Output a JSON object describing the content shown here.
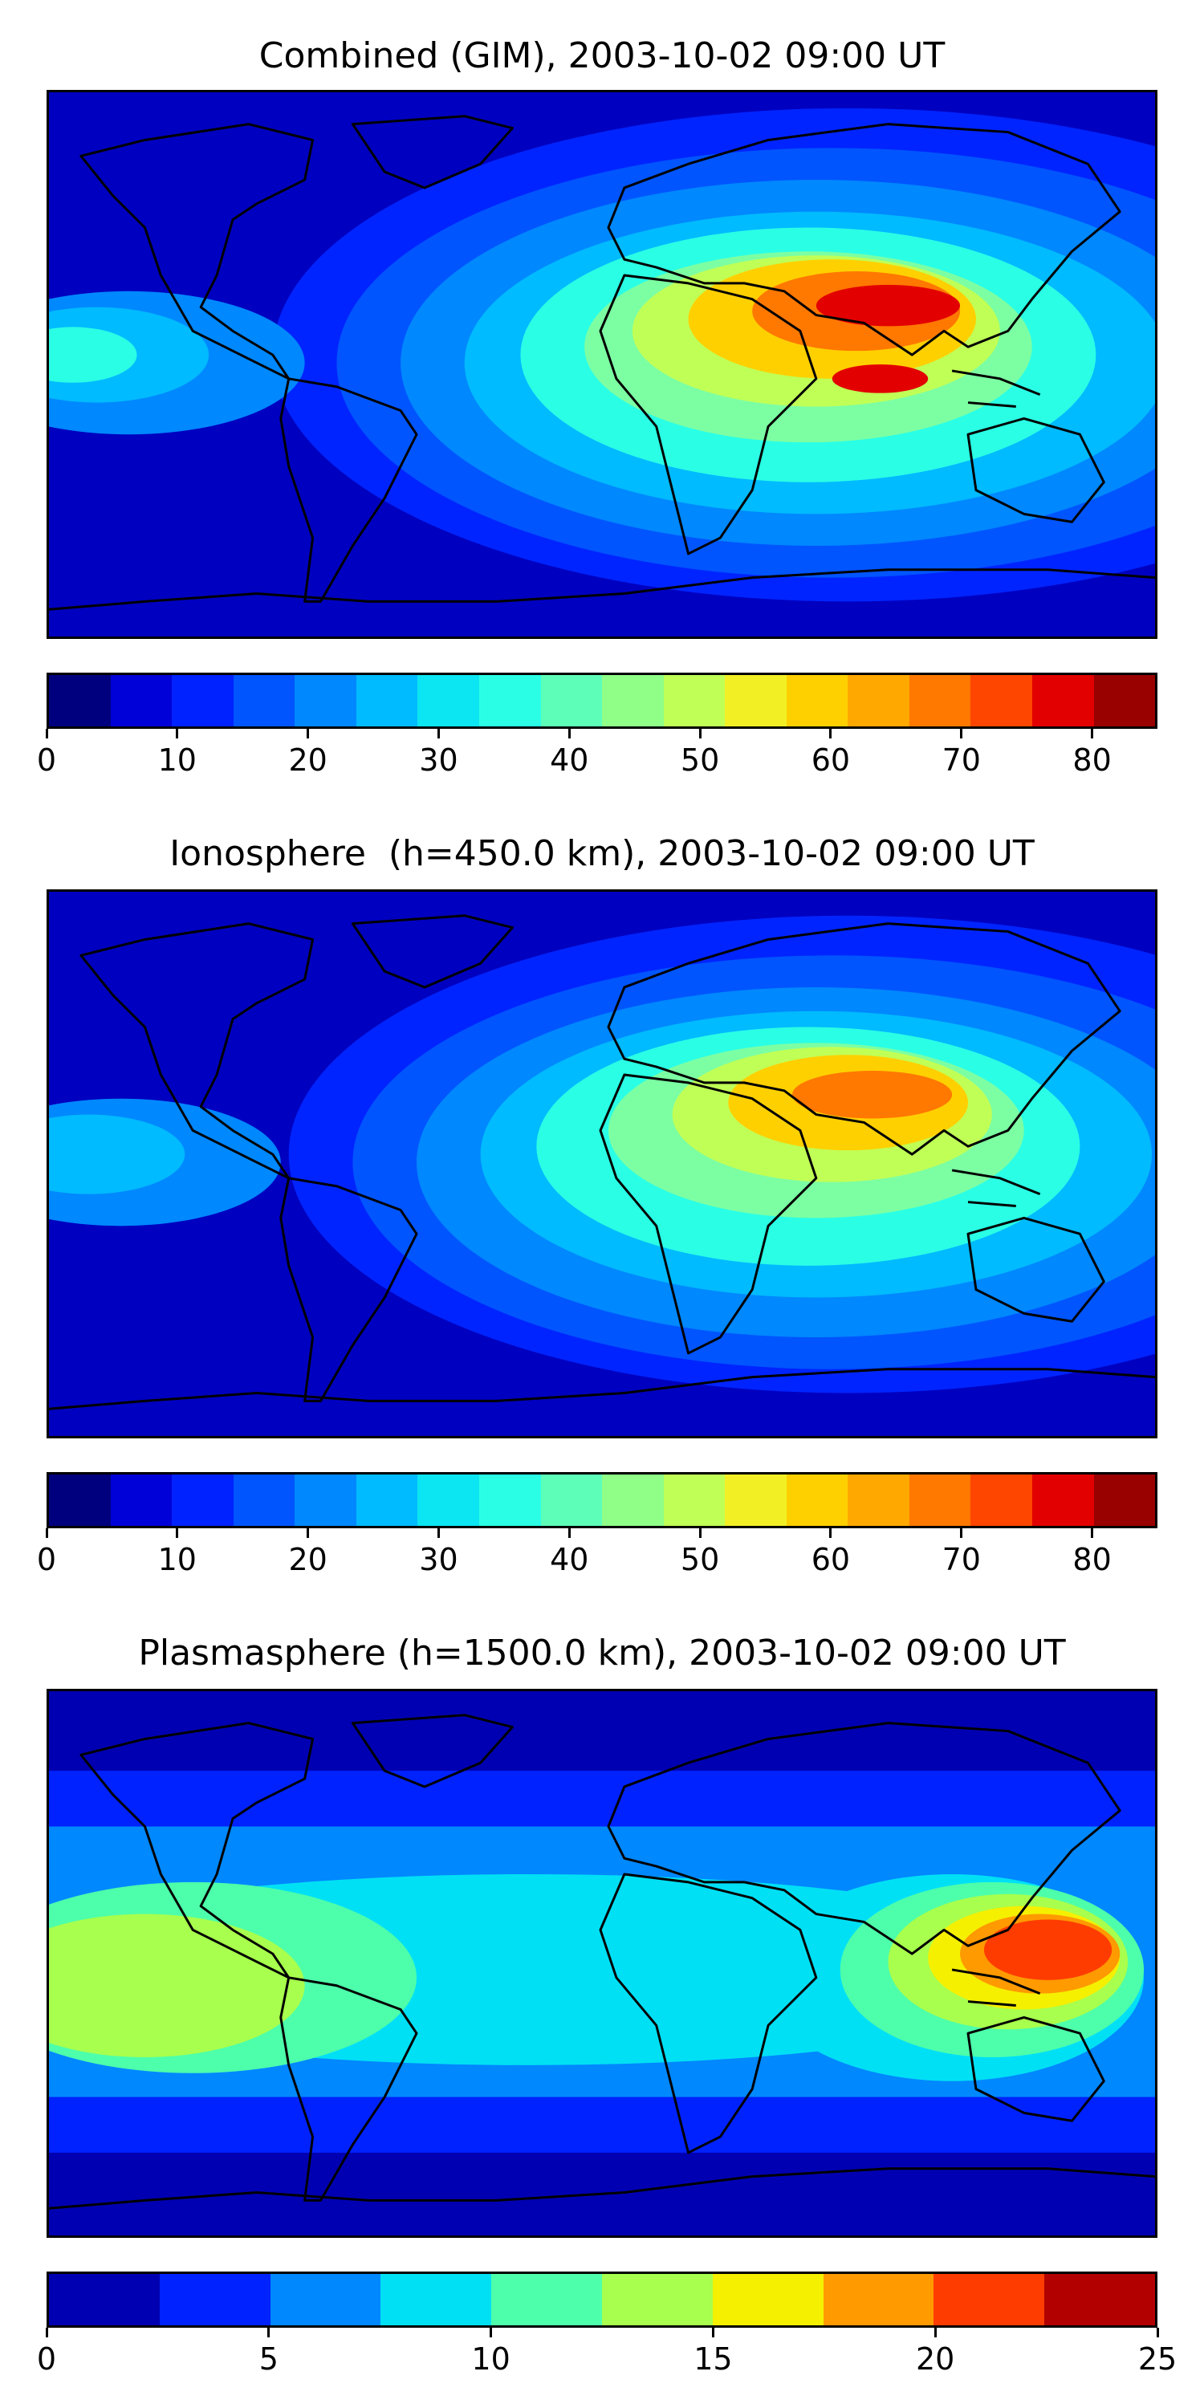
{
  "panels": [
    {
      "title": "Combined (GIM), 2003-10-02 09:00 UT",
      "colorbar": {
        "ticks": [
          "0",
          "10",
          "20",
          "30",
          "40",
          "50",
          "60",
          "70",
          "80"
        ],
        "min": 0,
        "max": 85,
        "colors": [
          "#00007f",
          "#0000d8",
          "#0022ff",
          "#0055ff",
          "#0088ff",
          "#00bbff",
          "#0ce5f2",
          "#2affe5",
          "#5dffb8",
          "#8fff87",
          "#c0ff56",
          "#f2f025",
          "#ffd000",
          "#ffa800",
          "#ff7800",
          "#ff4600",
          "#e30000",
          "#990000"
        ]
      },
      "field_colors": [
        "#0000c0",
        "#0024ff",
        "#0055ff",
        "#0088ff",
        "#00bbff",
        "#2affe5",
        "#7cffa3",
        "#c0ff56",
        "#ffd000",
        "#ff7800",
        "#e30000"
      ]
    },
    {
      "title": "Ionosphere  (h=450.0 km), 2003-10-02 09:00 UT",
      "colorbar": {
        "ticks": [
          "0",
          "10",
          "20",
          "30",
          "40",
          "50",
          "60",
          "70",
          "80"
        ],
        "min": 0,
        "max": 85,
        "colors": [
          "#00007f",
          "#0000d8",
          "#0022ff",
          "#0055ff",
          "#0088ff",
          "#00bbff",
          "#0ce5f2",
          "#2affe5",
          "#5dffb8",
          "#8fff87",
          "#c0ff56",
          "#f2f025",
          "#ffd000",
          "#ffa800",
          "#ff7800",
          "#ff4600",
          "#e30000",
          "#990000"
        ]
      },
      "field_colors": [
        "#0000c0",
        "#0024ff",
        "#0055ff",
        "#0088ff",
        "#00bbff",
        "#2affe5",
        "#7cffa3",
        "#c0ff56",
        "#ffd000",
        "#ff7800",
        "#e30000"
      ]
    },
    {
      "title": "Plasmasphere (h=1500.0 km), 2003-10-02 09:00 UT",
      "colorbar": {
        "ticks": [
          "0",
          "5",
          "10",
          "15",
          "20",
          "25"
        ],
        "min": 0,
        "max": 25,
        "colors": [
          "#0000b2",
          "#0022ff",
          "#0088ff",
          "#00e0f5",
          "#4dffaa",
          "#a8ff4d",
          "#f5f000",
          "#ff9a00",
          "#ff3c00",
          "#b20000"
        ]
      },
      "field_colors": [
        "#0000b2",
        "#0022ff",
        "#0088ff",
        "#00e0f5",
        "#4dffaa",
        "#a8ff4d",
        "#f5f000",
        "#ff9a00",
        "#ff3c00",
        "#b20000"
      ]
    }
  ]
}
